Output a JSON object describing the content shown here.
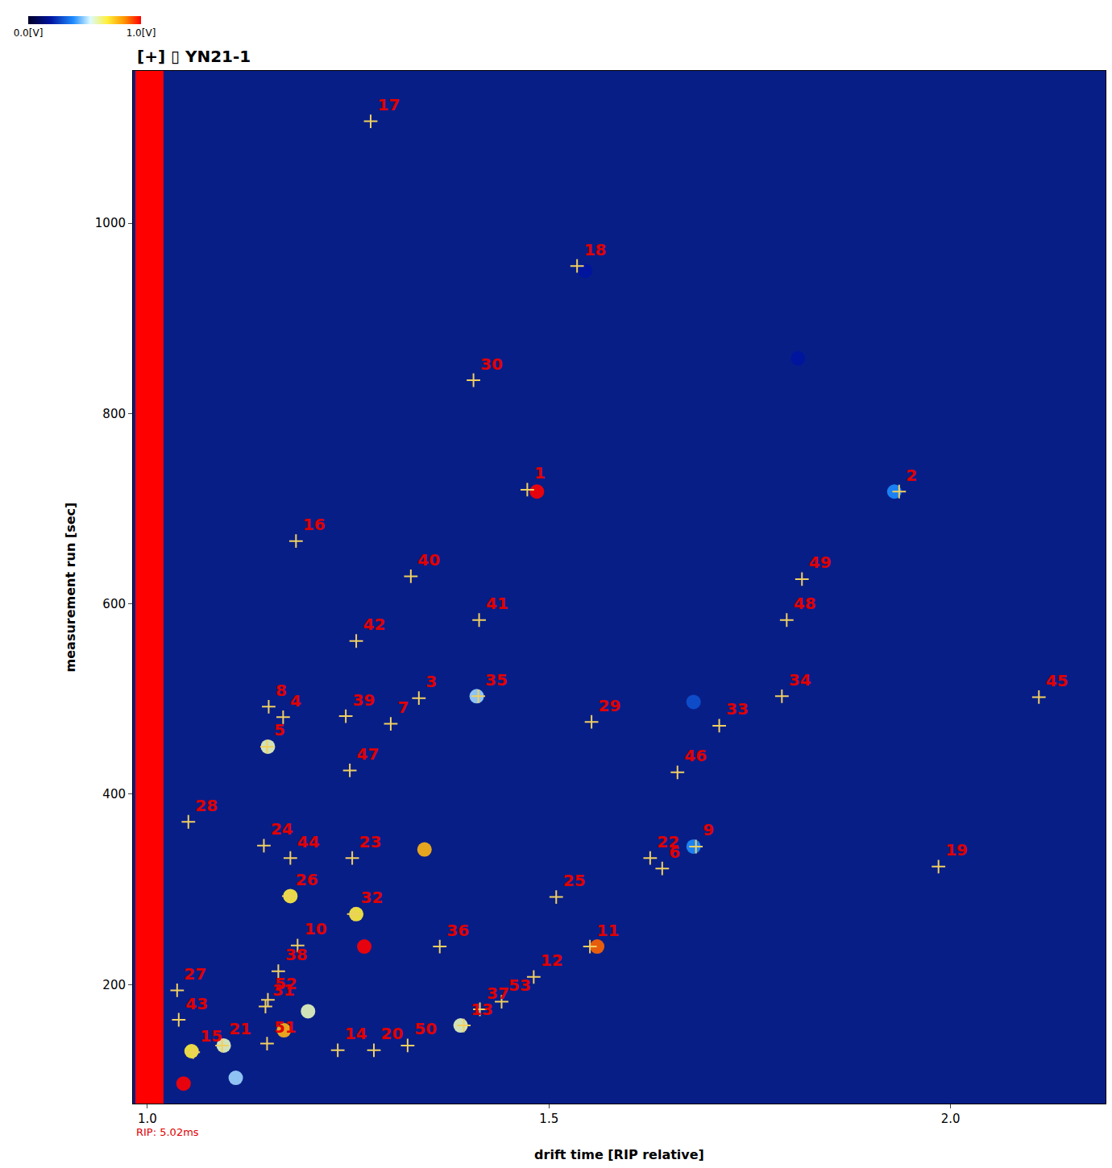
{
  "chart_data": {
    "type": "scatter",
    "title": "[+] ▯ YN21-1",
    "x_label": "drift time [RIP relative]",
    "y_label": "measurement run [sec]",
    "xlim": [
      0.982,
      2.193
    ],
    "ylim": [
      75,
      1160
    ],
    "xticks": [
      {
        "value": 1.0,
        "label": "1.0"
      },
      1.5,
      {
        "value": 2.0,
        "label": "2.0"
      }
    ],
    "yticks": [
      200,
      400,
      600,
      800,
      1000
    ],
    "annotations": [
      {
        "text": "RIP: 5.02ms"
      }
    ],
    "colorbar": {
      "range": [
        0,
        1
      ],
      "ticks": [
        {
          "value": 0,
          "label": "0.0[V]"
        },
        {
          "value": 1,
          "label": "1.0[V]"
        }
      ]
    },
    "rip_band": {
      "x": [
        0.985,
        1.02
      ],
      "value": 1.0
    },
    "spots": [
      {
        "x": 1.485,
        "y": 718,
        "value": 1.0
      },
      {
        "x": 1.93,
        "y": 718,
        "value": 0.4
      },
      {
        "x": 1.27,
        "y": 240,
        "value": 1.0
      },
      {
        "x": 1.56,
        "y": 240,
        "value": 0.9
      },
      {
        "x": 1.345,
        "y": 342,
        "value": 0.8
      },
      {
        "x": 1.41,
        "y": 503,
        "value": 0.5
      },
      {
        "x": 1.15,
        "y": 450,
        "value": 0.6
      },
      {
        "x": 1.178,
        "y": 293,
        "value": 0.7
      },
      {
        "x": 1.26,
        "y": 274,
        "value": 0.7
      },
      {
        "x": 1.68,
        "y": 497,
        "value": 0.3
      },
      {
        "x": 1.055,
        "y": 130,
        "value": 0.7
      },
      {
        "x": 1.095,
        "y": 136,
        "value": 0.6
      },
      {
        "x": 1.2,
        "y": 172,
        "value": 0.6
      },
      {
        "x": 1.17,
        "y": 152,
        "value": 0.8
      },
      {
        "x": 1.045,
        "y": 96,
        "value": 1.0
      },
      {
        "x": 1.11,
        "y": 102,
        "value": 0.5
      },
      {
        "x": 1.39,
        "y": 157,
        "value": 0.6
      },
      {
        "x": 1.68,
        "y": 345,
        "value": 0.4
      },
      {
        "x": 1.545,
        "y": 950,
        "value": 0.2
      },
      {
        "x": 1.81,
        "y": 858,
        "value": 0.2
      }
    ],
    "points": [
      {
        "label": "1",
        "x": 1.473,
        "y": 720
      },
      {
        "label": "2",
        "x": 1.936,
        "y": 718
      },
      {
        "label": "3",
        "x": 1.338,
        "y": 501
      },
      {
        "label": "4",
        "x": 1.169,
        "y": 481
      },
      {
        "label": "5",
        "x": 1.149,
        "y": 450
      },
      {
        "label": "6",
        "x": 1.641,
        "y": 322
      },
      {
        "label": "7",
        "x": 1.303,
        "y": 474
      },
      {
        "label": "8",
        "x": 1.151,
        "y": 492
      },
      {
        "label": "9",
        "x": 1.683,
        "y": 345
      },
      {
        "label": "10",
        "x": 1.187,
        "y": 241
      },
      {
        "label": "11",
        "x": 1.551,
        "y": 240
      },
      {
        "label": "12",
        "x": 1.481,
        "y": 208
      },
      {
        "label": "13",
        "x": 1.394,
        "y": 157
      },
      {
        "label": "14",
        "x": 1.237,
        "y": 131
      },
      {
        "label": "15",
        "x": 1.057,
        "y": 129
      },
      {
        "label": "16",
        "x": 1.185,
        "y": 666
      },
      {
        "label": "17",
        "x": 1.278,
        "y": 1107
      },
      {
        "label": "18",
        "x": 1.535,
        "y": 955
      },
      {
        "label": "19",
        "x": 1.985,
        "y": 324
      },
      {
        "label": "20",
        "x": 1.282,
        "y": 131
      },
      {
        "label": "21",
        "x": 1.093,
        "y": 136
      },
      {
        "label": "22",
        "x": 1.626,
        "y": 333
      },
      {
        "label": "23",
        "x": 1.255,
        "y": 333
      },
      {
        "label": "24",
        "x": 1.145,
        "y": 346
      },
      {
        "label": "25",
        "x": 1.509,
        "y": 292
      },
      {
        "label": "26",
        "x": 1.176,
        "y": 293
      },
      {
        "label": "27",
        "x": 1.037,
        "y": 194
      },
      {
        "label": "28",
        "x": 1.051,
        "y": 371
      },
      {
        "label": "29",
        "x": 1.553,
        "y": 476
      },
      {
        "label": "30",
        "x": 1.406,
        "y": 835
      },
      {
        "label": "31",
        "x": 1.147,
        "y": 177
      },
      {
        "label": "32",
        "x": 1.257,
        "y": 274
      },
      {
        "label": "33",
        "x": 1.712,
        "y": 472
      },
      {
        "label": "34",
        "x": 1.79,
        "y": 503
      },
      {
        "label": "35",
        "x": 1.412,
        "y": 503
      },
      {
        "label": "36",
        "x": 1.364,
        "y": 240
      },
      {
        "label": "37",
        "x": 1.414,
        "y": 174
      },
      {
        "label": "38",
        "x": 1.163,
        "y": 214
      },
      {
        "label": "39",
        "x": 1.247,
        "y": 482
      },
      {
        "label": "40",
        "x": 1.328,
        "y": 629
      },
      {
        "label": "41",
        "x": 1.413,
        "y": 583
      },
      {
        "label": "42",
        "x": 1.26,
        "y": 561
      },
      {
        "label": "43",
        "x": 1.039,
        "y": 163
      },
      {
        "label": "44",
        "x": 1.178,
        "y": 333
      },
      {
        "label": "45",
        "x": 2.11,
        "y": 502
      },
      {
        "label": "46",
        "x": 1.66,
        "y": 423
      },
      {
        "label": "47",
        "x": 1.252,
        "y": 425
      },
      {
        "label": "48",
        "x": 1.796,
        "y": 583
      },
      {
        "label": "49",
        "x": 1.815,
        "y": 626
      },
      {
        "label": "50",
        "x": 1.324,
        "y": 136
      },
      {
        "label": "51",
        "x": 1.149,
        "y": 138
      },
      {
        "label": "52",
        "x": 1.15,
        "y": 184
      },
      {
        "label": "53",
        "x": 1.441,
        "y": 182
      }
    ]
  }
}
